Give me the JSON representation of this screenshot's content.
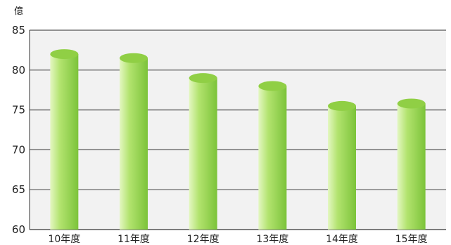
{
  "chart_data": {
    "type": "bar",
    "unit_label": "億",
    "categories": [
      "10年度",
      "11年度",
      "12年度",
      "13年度",
      "14年度",
      "15年度"
    ],
    "values": [
      82,
      81.5,
      79,
      78,
      75.5,
      75.8
    ],
    "yticks": [
      60,
      65,
      70,
      75,
      80,
      85
    ],
    "ylim": [
      60,
      85
    ],
    "grid": true,
    "colors": {
      "bar_light": "#e4f7c2",
      "bar_mid": "#b2e36e",
      "bar_dark": "#7cc33a",
      "bar_top": "#90cf45",
      "plot_bg": "#f2f2f2",
      "grid": "#555555"
    }
  }
}
